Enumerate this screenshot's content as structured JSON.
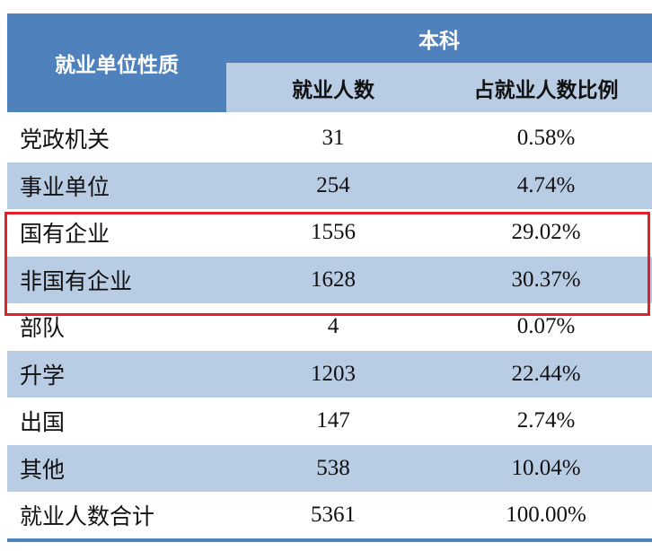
{
  "table": {
    "header": {
      "category": "就业单位性质",
      "group": "本科",
      "columns": [
        "就业人数",
        "占就业人数比例"
      ]
    },
    "rows": [
      [
        "党政机关",
        31,
        "0.58%"
      ],
      [
        "事业单位",
        254,
        "4.74%"
      ],
      [
        "国有企业",
        1556,
        "29.02%"
      ],
      [
        "非国有企业",
        1628,
        "30.37%"
      ],
      [
        "部队",
        4,
        "0.07%"
      ],
      [
        "升学",
        1203,
        "22.44%"
      ],
      [
        "出国",
        147,
        "2.74%"
      ],
      [
        "其他",
        538,
        "10.04%"
      ],
      [
        "就业人数合计",
        5361,
        "100.00%"
      ]
    ]
  }
}
